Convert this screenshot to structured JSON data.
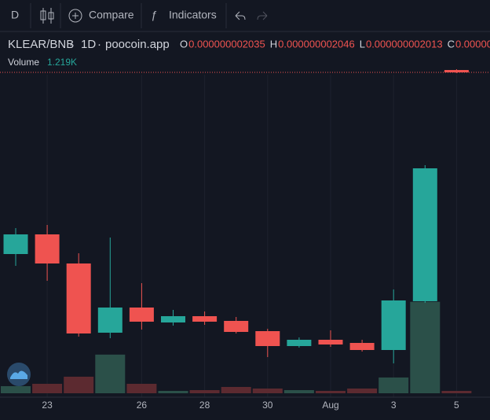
{
  "toolbar": {
    "interval": "D",
    "compare": "Compare",
    "indicators": "Indicators"
  },
  "chart_data": {
    "type": "candlestick",
    "symbol": "KLEAR/BNB",
    "interval": "1D",
    "source": "poocoin.app",
    "ohlc_header": [
      {
        "key": "O",
        "value": "0.000000002035"
      },
      {
        "key": "H",
        "value": "0.000000002046"
      },
      {
        "key": "L",
        "value": "0.000000002013"
      },
      {
        "key": "C",
        "value": "0.0000000"
      }
    ],
    "volume_title": "Volume",
    "volume_label": "1.219K",
    "categories": [
      null,
      "23",
      null,
      null,
      "26",
      null,
      "28",
      null,
      "30",
      null,
      "Aug",
      null,
      "3",
      null,
      "5"
    ],
    "open": [
      177,
      202,
      165,
      77,
      109,
      90,
      98,
      92,
      79,
      60,
      68,
      64,
      55,
      117,
      411
    ],
    "high": [
      210,
      214,
      178,
      198,
      140,
      106,
      104,
      97,
      82,
      71,
      80,
      68,
      132,
      290,
      412
    ],
    "low": [
      162,
      143,
      72,
      70,
      81,
      86,
      87,
      76,
      46,
      58,
      59,
      53,
      38,
      115,
      407
    ],
    "close": [
      202,
      165,
      76,
      109,
      91,
      98,
      91,
      78,
      60,
      68,
      62,
      55,
      118,
      286,
      408
    ],
    "volume": [
      3650,
      4870,
      8530,
      19900,
      4870,
      1220,
      1620,
      3250,
      2440,
      1620,
      1220,
      2440,
      8120,
      47100,
      1219
    ],
    "ylim": [
      0,
      405
    ],
    "volume_lim": [
      0,
      164000
    ],
    "up_color": "#26a69a",
    "down_color": "#ef5350",
    "volume_up_color": "#2b5049",
    "volume_down_color": "#5c2a30",
    "last_price_line_color": "#ef5350"
  }
}
